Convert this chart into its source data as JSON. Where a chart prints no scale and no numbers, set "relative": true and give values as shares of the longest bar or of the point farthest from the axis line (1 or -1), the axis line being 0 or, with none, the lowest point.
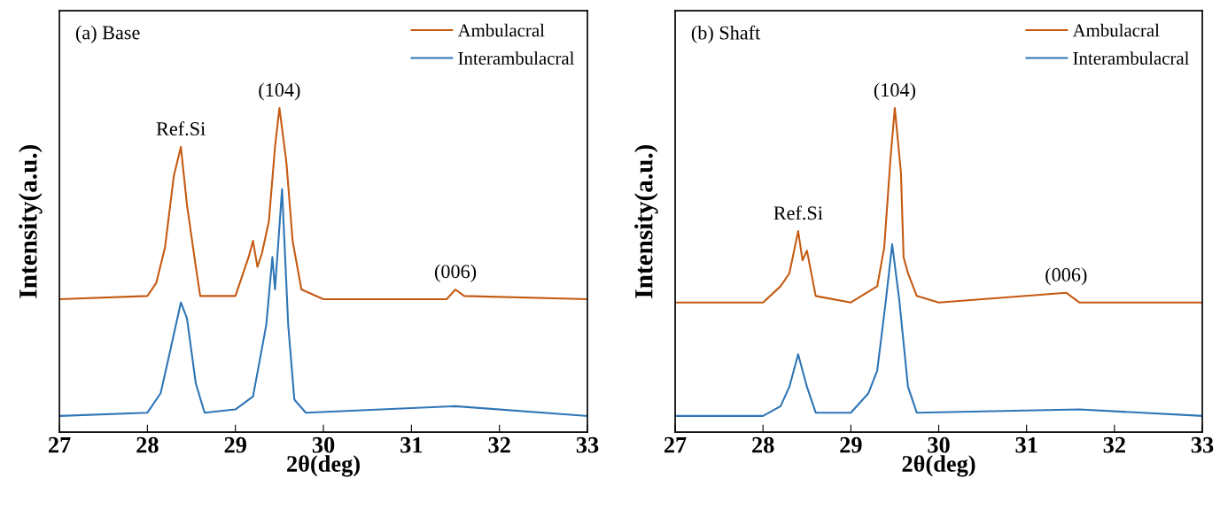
{
  "chart_data": [
    {
      "type": "line",
      "relative": true,
      "xlabel": "2θ(deg)",
      "ylabel": "Intensity(a.u.)",
      "xlim": [
        27,
        33
      ],
      "xticks": [
        27,
        28,
        29,
        30,
        31,
        32,
        33
      ],
      "tick_labels": "x",
      "legend": "top right",
      "grid": false,
      "marker": "none",
      "line_style": "solid",
      "annotations": [
        "(a) Base",
        {
          "text": "Ref.Si",
          "x": 28.38,
          "y": 0.88
        },
        {
          "text": "(104)",
          "x": 29.5,
          "y": 1
        },
        {
          "text": "(006)",
          "x": 31.5,
          "y": 0.44
        }
      ],
      "series": [
        {
          "name": "Ambulacral",
          "color": "#c55a11",
          "x": [
            27,
            28,
            28.1,
            28.2,
            28.3,
            28.38,
            28.45,
            28.55,
            28.6,
            29,
            29.15,
            29.2,
            29.25,
            29.3,
            29.38,
            29.45,
            29.5,
            29.58,
            29.65,
            29.75,
            30,
            31.4,
            31.5,
            31.6,
            33
          ],
          "values": [
            0.41,
            0.42,
            0.46,
            0.57,
            0.79,
            0.88,
            0.7,
            0.51,
            0.42,
            0.42,
            0.54,
            0.59,
            0.51,
            0.55,
            0.65,
            0.88,
            1,
            0.83,
            0.59,
            0.44,
            0.41,
            0.41,
            0.44,
            0.42,
            0.41
          ]
        },
        {
          "name": "Interambulacral",
          "color": "#2e75b6",
          "x": [
            27,
            28,
            28.15,
            28.25,
            28.38,
            28.45,
            28.55,
            28.65,
            29,
            29.2,
            29.35,
            29.42,
            29.45,
            29.53,
            29.6,
            29.67,
            29.8,
            31.5,
            33
          ],
          "values": [
            0.05,
            0.06,
            0.12,
            0.24,
            0.4,
            0.35,
            0.15,
            0.06,
            0.07,
            0.11,
            0.33,
            0.54,
            0.44,
            0.75,
            0.33,
            0.1,
            0.06,
            0.08,
            0.05
          ]
        }
      ]
    },
    {
      "type": "line",
      "relative": true,
      "xlabel": "2θ(deg)",
      "ylabel": "Intensity(a.u.)",
      "xlim": [
        27,
        33
      ],
      "xticks": [
        27,
        28,
        29,
        30,
        31,
        32,
        33
      ],
      "tick_labels": "x",
      "legend": "top right",
      "grid": false,
      "marker": "none",
      "line_style": "solid",
      "annotations": [
        "(b) Shaft",
        {
          "text": "Ref.Si",
          "x": 28.4,
          "y": 0.62
        },
        {
          "text": "(104)",
          "x": 29.5,
          "y": 1
        },
        {
          "text": "(006)",
          "x": 31.45,
          "y": 0.43
        }
      ],
      "series": [
        {
          "name": "Ambulacral",
          "color": "#c55a11",
          "x": [
            27,
            28,
            28.2,
            28.3,
            28.4,
            28.45,
            28.5,
            28.6,
            29,
            29.3,
            29.38,
            29.45,
            29.5,
            29.57,
            29.6,
            29.65,
            29.75,
            30,
            31.45,
            31.6,
            33
          ],
          "values": [
            0.4,
            0.4,
            0.45,
            0.49,
            0.62,
            0.53,
            0.56,
            0.42,
            0.4,
            0.45,
            0.57,
            0.84,
            1,
            0.8,
            0.54,
            0.49,
            0.42,
            0.4,
            0.43,
            0.4,
            0.4
          ]
        },
        {
          "name": "Interambulacral",
          "color": "#2e75b6",
          "x": [
            27,
            28,
            28.2,
            28.3,
            28.4,
            28.5,
            28.6,
            29,
            29.2,
            29.3,
            29.4,
            29.47,
            29.55,
            29.65,
            29.75,
            31.6,
            33
          ],
          "values": [
            0.05,
            0.05,
            0.08,
            0.14,
            0.24,
            0.14,
            0.06,
            0.06,
            0.12,
            0.19,
            0.41,
            0.58,
            0.41,
            0.14,
            0.06,
            0.07,
            0.05
          ]
        }
      ]
    }
  ]
}
